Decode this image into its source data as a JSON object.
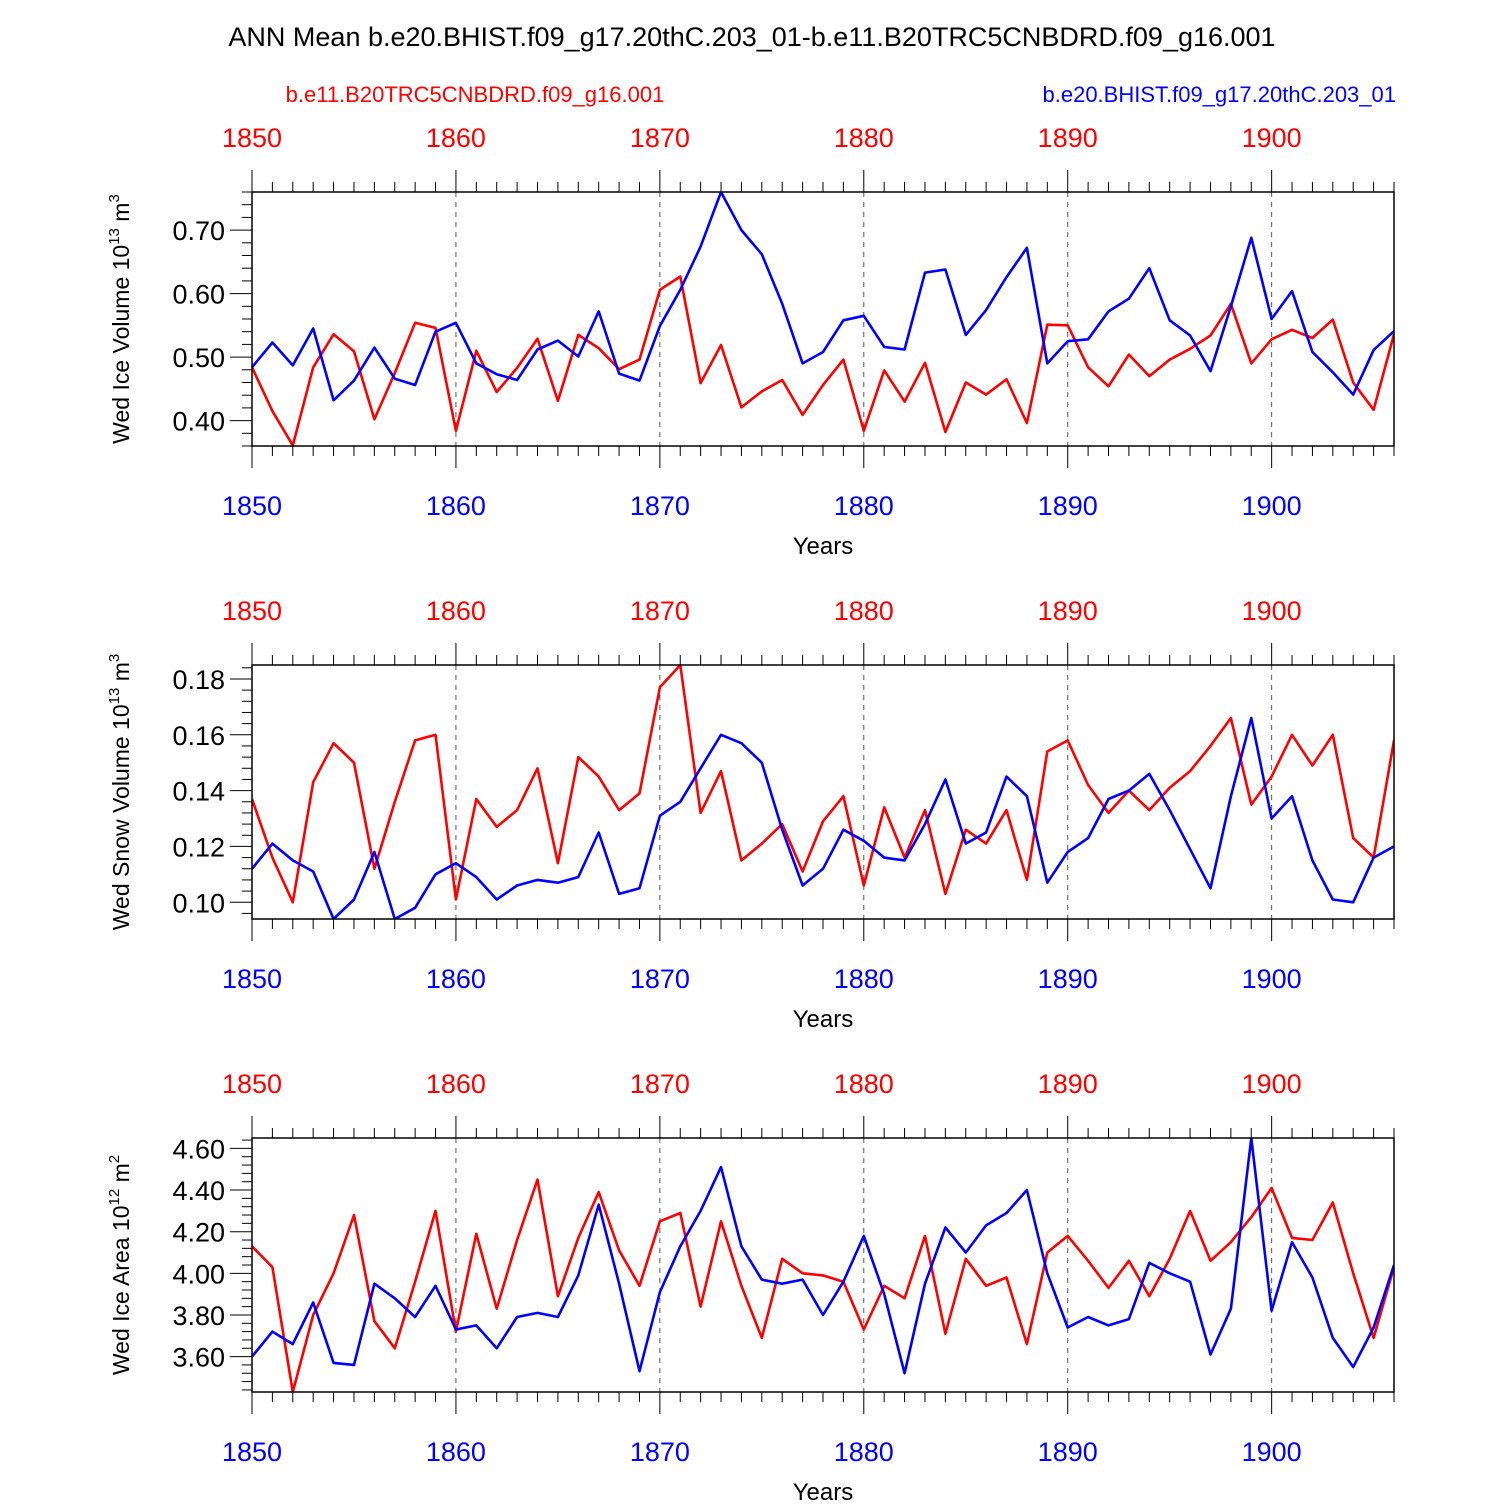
{
  "title": "ANN Mean b.e20.BHIST.f09_g17.20thC.203_01-b.e11.B20TRC5CNBDRD.f09_g16.001",
  "legend": {
    "left_label": "b.e11.B20TRC5CNBDRD.f09_g16.001",
    "right_label": "b.e20.BHIST.f09_g17.20thC.203_01"
  },
  "colors": {
    "case1": "#ff0000",
    "case2": "#0000ff",
    "axis": "#000000",
    "grid": "#555555"
  },
  "chart_data": [
    {
      "type": "line",
      "ylabel_main": "Wed Ice Volume 10",
      "ylabel_exp": "13",
      "ylabel_unit": " m",
      "ylabel_unit_exp": "3",
      "xlabel": "Years",
      "xlim": [
        1850,
        1906
      ],
      "ylim": [
        0.36,
        0.76
      ],
      "yticks": [
        0.4,
        0.5,
        0.6,
        0.7
      ],
      "ytick_labels": [
        "0.40",
        "0.50",
        "0.60",
        "0.70"
      ],
      "xticks": [
        1850,
        1860,
        1870,
        1880,
        1890,
        1900
      ],
      "xtick_labels": [
        "1850",
        "1860",
        "1870",
        "1880",
        "1890",
        "1900"
      ],
      "x": [
        1850,
        1851,
        1852,
        1853,
        1854,
        1855,
        1856,
        1857,
        1858,
        1859,
        1860,
        1861,
        1862,
        1863,
        1864,
        1865,
        1866,
        1867,
        1868,
        1869,
        1870,
        1871,
        1872,
        1873,
        1874,
        1875,
        1876,
        1877,
        1878,
        1879,
        1880,
        1881,
        1882,
        1883,
        1884,
        1885,
        1886,
        1887,
        1888,
        1889,
        1890,
        1891,
        1892,
        1893,
        1894,
        1895,
        1896,
        1897,
        1898,
        1899,
        1900,
        1901,
        1902,
        1903,
        1904,
        1905,
        1906
      ],
      "series": [
        {
          "name": "b.e11.B20TRC5CNBDRD.f09_g16.001",
          "color": "#ff0000",
          "values": [
            0.484,
            0.415,
            0.361,
            0.484,
            0.536,
            0.509,
            0.402,
            0.475,
            0.554,
            0.546,
            0.384,
            0.51,
            0.445,
            0.483,
            0.529,
            0.431,
            0.535,
            0.514,
            0.481,
            0.496,
            0.606,
            0.627,
            0.459,
            0.519,
            0.421,
            0.446,
            0.464,
            0.409,
            0.456,
            0.496,
            0.384,
            0.479,
            0.43,
            0.491,
            0.382,
            0.46,
            0.441,
            0.465,
            0.396,
            0.551,
            0.55,
            0.484,
            0.454,
            0.504,
            0.47,
            0.496,
            0.513,
            0.534,
            0.584,
            0.49,
            0.528,
            0.543,
            0.53,
            0.559,
            0.46,
            0.417,
            0.536
          ]
        },
        {
          "name": "b.e20.BHIST.f09_g17.20thC.203_01",
          "color": "#0000ff",
          "values": [
            0.484,
            0.523,
            0.487,
            0.545,
            0.432,
            0.463,
            0.515,
            0.466,
            0.456,
            0.54,
            0.554,
            0.49,
            0.473,
            0.464,
            0.512,
            0.526,
            0.501,
            0.572,
            0.474,
            0.463,
            0.549,
            0.606,
            0.674,
            0.76,
            0.7,
            0.662,
            0.584,
            0.49,
            0.508,
            0.558,
            0.565,
            0.516,
            0.512,
            0.633,
            0.638,
            0.535,
            0.574,
            0.626,
            0.672,
            0.49,
            0.525,
            0.528,
            0.572,
            0.592,
            0.64,
            0.558,
            0.534,
            0.478,
            0.58,
            0.688,
            0.56,
            0.604,
            0.508,
            0.476,
            0.441,
            0.511,
            0.541
          ]
        }
      ]
    },
    {
      "type": "line",
      "ylabel_main": "Wed Snow Volume 10",
      "ylabel_exp": "13",
      "ylabel_unit": " m",
      "ylabel_unit_exp": "3",
      "xlabel": "Years",
      "xlim": [
        1850,
        1906
      ],
      "ylim": [
        0.094,
        0.185
      ],
      "yticks": [
        0.1,
        0.12,
        0.14,
        0.16,
        0.18
      ],
      "ytick_labels": [
        "0.10",
        "0.12",
        "0.14",
        "0.16",
        "0.18"
      ],
      "xticks": [
        1850,
        1860,
        1870,
        1880,
        1890,
        1900
      ],
      "xtick_labels": [
        "1850",
        "1860",
        "1870",
        "1880",
        "1890",
        "1900"
      ],
      "x": [
        1850,
        1851,
        1852,
        1853,
        1854,
        1855,
        1856,
        1857,
        1858,
        1859,
        1860,
        1861,
        1862,
        1863,
        1864,
        1865,
        1866,
        1867,
        1868,
        1869,
        1870,
        1871,
        1872,
        1873,
        1874,
        1875,
        1876,
        1877,
        1878,
        1879,
        1880,
        1881,
        1882,
        1883,
        1884,
        1885,
        1886,
        1887,
        1888,
        1889,
        1890,
        1891,
        1892,
        1893,
        1894,
        1895,
        1896,
        1897,
        1898,
        1899,
        1900,
        1901,
        1902,
        1903,
        1904,
        1905,
        1906
      ],
      "series": [
        {
          "name": "b.e11.B20TRC5CNBDRD.f09_g16.001",
          "color": "#ff0000",
          "values": [
            0.137,
            0.116,
            0.1,
            0.143,
            0.157,
            0.15,
            0.112,
            0.136,
            0.158,
            0.16,
            0.101,
            0.137,
            0.127,
            0.133,
            0.148,
            0.114,
            0.152,
            0.145,
            0.133,
            0.139,
            0.177,
            0.185,
            0.132,
            0.147,
            0.115,
            0.121,
            0.128,
            0.111,
            0.129,
            0.138,
            0.106,
            0.134,
            0.116,
            0.133,
            0.103,
            0.126,
            0.121,
            0.133,
            0.108,
            0.154,
            0.158,
            0.142,
            0.132,
            0.14,
            0.133,
            0.141,
            0.147,
            0.156,
            0.166,
            0.135,
            0.145,
            0.16,
            0.149,
            0.16,
            0.123,
            0.116,
            0.158
          ]
        },
        {
          "name": "b.e20.BHIST.f09_g17.20thC.203_01",
          "color": "#0000ff",
          "values": [
            0.112,
            0.121,
            0.115,
            0.111,
            0.094,
            0.101,
            0.118,
            0.094,
            0.098,
            0.11,
            0.114,
            0.109,
            0.101,
            0.106,
            0.108,
            0.107,
            0.109,
            0.125,
            0.103,
            0.105,
            0.131,
            0.136,
            0.148,
            0.16,
            0.157,
            0.15,
            0.126,
            0.106,
            0.112,
            0.126,
            0.122,
            0.116,
            0.115,
            0.128,
            0.144,
            0.121,
            0.125,
            0.145,
            0.138,
            0.107,
            0.118,
            0.123,
            0.137,
            0.14,
            0.146,
            0.133,
            0.119,
            0.105,
            0.138,
            0.166,
            0.13,
            0.138,
            0.115,
            0.101,
            0.1,
            0.116,
            0.12
          ]
        }
      ]
    },
    {
      "type": "line",
      "ylabel_main": "Wed Ice Area 10",
      "ylabel_exp": "12",
      "ylabel_unit": " m",
      "ylabel_unit_exp": "2",
      "xlabel": "Years",
      "xlim": [
        1850,
        1906
      ],
      "ylim": [
        3.43,
        4.65
      ],
      "yticks": [
        3.6,
        3.8,
        4.0,
        4.2,
        4.4,
        4.6
      ],
      "ytick_labels": [
        "3.60",
        "3.80",
        "4.00",
        "4.20",
        "4.40",
        "4.60"
      ],
      "xticks": [
        1850,
        1860,
        1870,
        1880,
        1890,
        1900
      ],
      "xtick_labels": [
        "1850",
        "1860",
        "1870",
        "1880",
        "1890",
        "1900"
      ],
      "x": [
        1850,
        1851,
        1852,
        1853,
        1854,
        1855,
        1856,
        1857,
        1858,
        1859,
        1860,
        1861,
        1862,
        1863,
        1864,
        1865,
        1866,
        1867,
        1868,
        1869,
        1870,
        1871,
        1872,
        1873,
        1874,
        1875,
        1876,
        1877,
        1878,
        1879,
        1880,
        1881,
        1882,
        1883,
        1884,
        1885,
        1886,
        1887,
        1888,
        1889,
        1890,
        1891,
        1892,
        1893,
        1894,
        1895,
        1896,
        1897,
        1898,
        1899,
        1900,
        1901,
        1902,
        1903,
        1904,
        1905,
        1906
      ],
      "series": [
        {
          "name": "b.e11.B20TRC5CNBDRD.f09_g16.001",
          "color": "#ff0000",
          "values": [
            4.13,
            4.03,
            3.43,
            3.8,
            4.0,
            4.28,
            3.77,
            3.64,
            3.96,
            4.3,
            3.72,
            4.19,
            3.83,
            4.16,
            4.45,
            3.89,
            4.17,
            4.39,
            4.11,
            3.94,
            4.25,
            4.29,
            3.84,
            4.25,
            3.94,
            3.69,
            4.07,
            4.0,
            3.99,
            3.96,
            3.73,
            3.94,
            3.88,
            4.18,
            3.71,
            4.07,
            3.94,
            3.98,
            3.66,
            4.1,
            4.18,
            4.06,
            3.93,
            4.06,
            3.89,
            4.07,
            4.3,
            4.06,
            4.15,
            4.27,
            4.41,
            4.17,
            4.16,
            4.34,
            4.0,
            3.69,
            4.03
          ]
        },
        {
          "name": "b.e20.BHIST.f09_g17.20thC.203_01",
          "color": "#0000ff",
          "values": [
            3.6,
            3.72,
            3.66,
            3.86,
            3.57,
            3.56,
            3.95,
            3.88,
            3.79,
            3.94,
            3.73,
            3.75,
            3.64,
            3.79,
            3.81,
            3.79,
            3.99,
            4.33,
            3.95,
            3.53,
            3.91,
            4.13,
            4.3,
            4.51,
            4.13,
            3.97,
            3.95,
            3.97,
            3.8,
            3.96,
            4.18,
            3.9,
            3.52,
            3.95,
            4.22,
            4.1,
            4.23,
            4.29,
            4.4,
            4.0,
            3.74,
            3.79,
            3.75,
            3.78,
            4.05,
            4.0,
            3.96,
            3.61,
            3.83,
            4.65,
            3.82,
            4.15,
            3.98,
            3.69,
            3.55,
            3.74,
            4.04
          ]
        }
      ]
    }
  ]
}
